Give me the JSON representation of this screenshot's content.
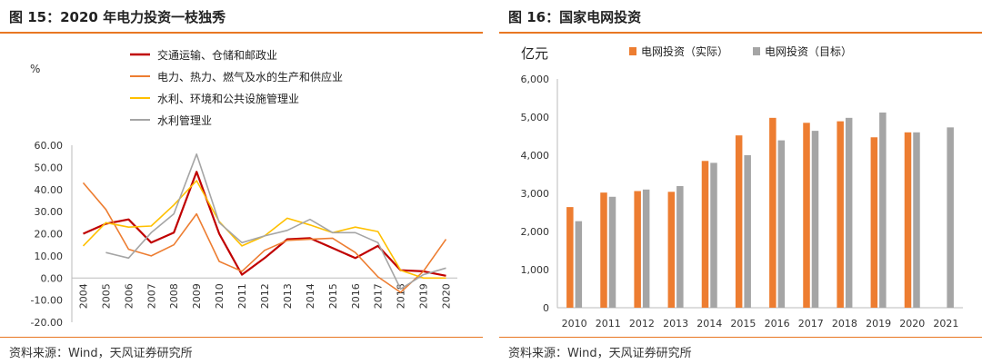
{
  "left": {
    "title": "图 15：2020 年电力投资一枝独秀",
    "source": "资料来源：Wind，天风证券研究所",
    "chart_data": {
      "type": "line",
      "ylabel": "%",
      "ylim": [
        -20,
        60
      ],
      "yticks": [
        "60.00",
        "50.00",
        "40.00",
        "30.00",
        "20.00",
        "10.00",
        "0.00",
        "-10.00",
        "-20.00"
      ],
      "categories": [
        "2004",
        "2005",
        "2006",
        "2007",
        "2008",
        "2009",
        "2010",
        "2011",
        "2012",
        "2013",
        "2014",
        "2015",
        "2016",
        "2017",
        "2018",
        "2019",
        "2020"
      ],
      "legend_position": "top",
      "series": [
        {
          "name": "交通运输、仓储和邮政业",
          "color": "#c00000",
          "width": 2.2,
          "values": [
            20,
            24.5,
            26.5,
            16,
            20.5,
            48,
            20,
            1.5,
            9,
            17.5,
            18,
            13.5,
            9,
            14.5,
            3.5,
            3,
            1
          ]
        },
        {
          "name": "电力、热力、燃气及水的生产和供应业",
          "color": "#ed7d31",
          "width": 1.6,
          "values": [
            43,
            31,
            13,
            10,
            15,
            29,
            7.5,
            3,
            12.5,
            17,
            17.5,
            18,
            11.5,
            0.5,
            -6.5,
            3,
            17.5
          ]
        },
        {
          "name": "水利、环境和公共设施管理业",
          "color": "#ffc000",
          "width": 1.6,
          "values": [
            14.5,
            25,
            23,
            23.5,
            33,
            44,
            25.5,
            14.5,
            19,
            27,
            24,
            20.5,
            23,
            21,
            3.5,
            0,
            0
          ]
        },
        {
          "name": "水利管理业",
          "color": "#a5a5a5",
          "width": 1.6,
          "values": [
            null,
            11.5,
            9,
            20.5,
            29,
            56,
            25,
            16,
            19,
            21.5,
            26.5,
            20.5,
            20.5,
            16,
            -5,
            1.5,
            4.5
          ]
        }
      ]
    }
  },
  "right": {
    "title": "图 16：国家电网投资",
    "source": "资料来源：Wind，天风证券研究所",
    "chart_data": {
      "type": "bar",
      "ylabel": "亿元",
      "ylim": [
        0,
        6000
      ],
      "yticks": [
        "6,000",
        "5,000",
        "4,000",
        "3,000",
        "2,000",
        "1,000",
        "0"
      ],
      "categories": [
        "2010",
        "2011",
        "2012",
        "2013",
        "2014",
        "2015",
        "2016",
        "2017",
        "2018",
        "2019",
        "2020",
        "2021"
      ],
      "legend_position": "top",
      "series": [
        {
          "name": "电网投资（实际）",
          "color": "#ed7d31",
          "values": [
            2640,
            3020,
            3060,
            3040,
            3850,
            4520,
            4980,
            4850,
            4890,
            4470,
            4600,
            null
          ]
        },
        {
          "name": "电网投资（目标）",
          "color": "#a5a5a5",
          "values": [
            2270,
            2910,
            3100,
            3190,
            3800,
            4000,
            4390,
            4640,
            4980,
            5120,
            4600,
            4730
          ]
        }
      ]
    }
  }
}
